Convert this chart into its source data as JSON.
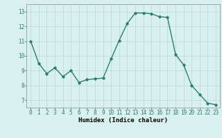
{
  "x": [
    0,
    1,
    2,
    3,
    4,
    5,
    6,
    7,
    8,
    9,
    10,
    11,
    12,
    13,
    14,
    15,
    16,
    17,
    18,
    19,
    20,
    21,
    22,
    23
  ],
  "y": [
    11.0,
    9.5,
    8.8,
    9.2,
    8.6,
    9.0,
    8.2,
    8.4,
    8.45,
    8.5,
    9.8,
    11.05,
    12.2,
    12.9,
    12.9,
    12.85,
    12.65,
    12.6,
    10.1,
    9.4,
    8.0,
    7.4,
    6.8,
    6.7
  ],
  "line_color": "#2d7d6e",
  "marker": "D",
  "marker_size": 1.8,
  "bg_color": "#d8f0ee",
  "grid_color": "#b8d8d4",
  "xlabel": "Humidex (Indice chaleur)",
  "ylim": [
    6.5,
    13.5
  ],
  "xlim": [
    -0.5,
    23.5
  ],
  "yticks": [
    7,
    8,
    9,
    10,
    11,
    12,
    13
  ],
  "xticks": [
    0,
    1,
    2,
    3,
    4,
    5,
    6,
    7,
    8,
    9,
    10,
    11,
    12,
    13,
    14,
    15,
    16,
    17,
    18,
    19,
    20,
    21,
    22,
    23
  ],
  "tick_fontsize": 5.5,
  "xlabel_fontsize": 6.5,
  "linewidth": 1.0
}
